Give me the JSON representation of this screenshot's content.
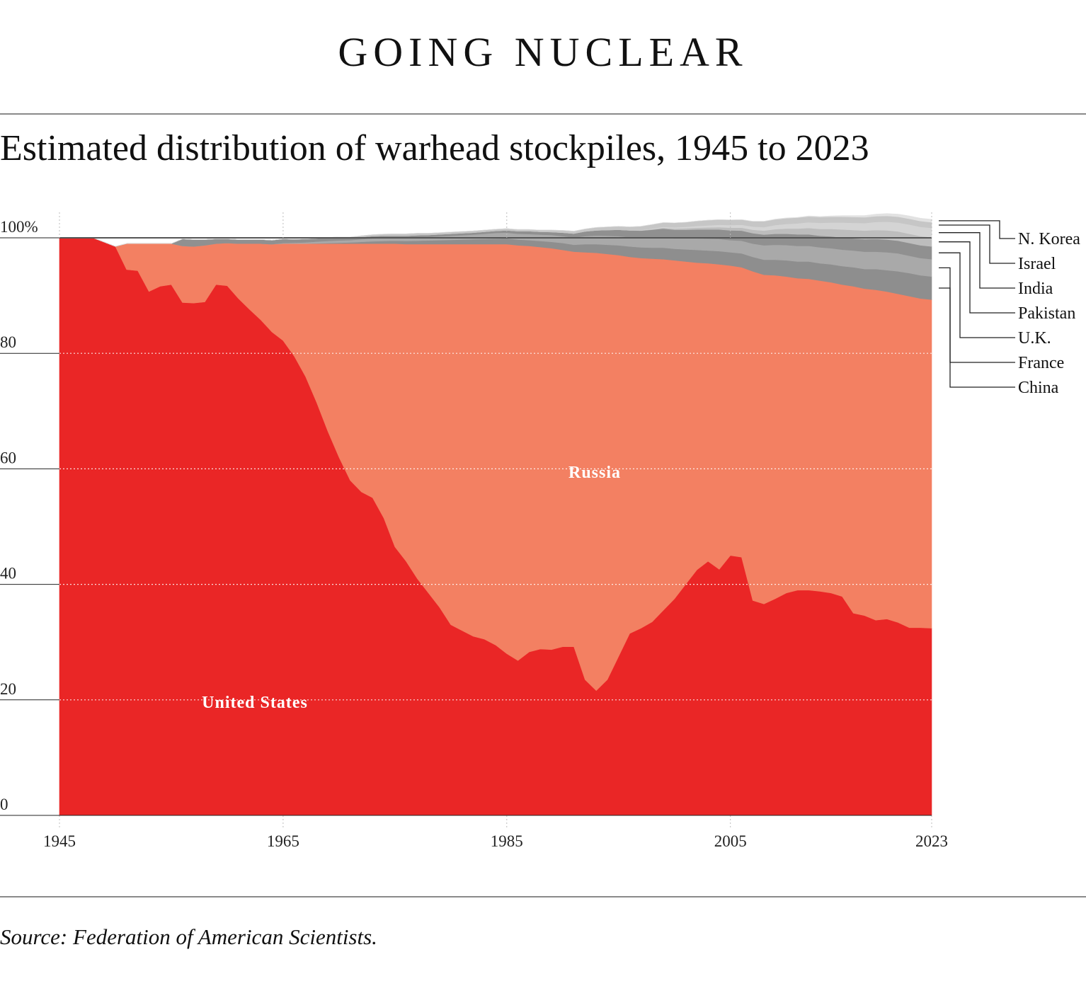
{
  "header": {
    "title": "GOING NUCLEAR",
    "subtitle": "Estimated distribution of warhead stockpiles, 1945 to 2023"
  },
  "footer": {
    "source": "Source: Federation of American Scientists."
  },
  "chart_data": {
    "type": "area",
    "stacked": true,
    "unit": "percent",
    "x_ticks": [
      "1945",
      "1965",
      "1985",
      "2005",
      "2023"
    ],
    "y_ticks": [
      "0",
      "20",
      "40",
      "60",
      "80",
      "100%"
    ],
    "ylim": [
      0,
      100
    ],
    "xlim": [
      1945,
      2023
    ],
    "grid": true,
    "legend_placement": "right",
    "x": [
      1945,
      1948,
      1950,
      1951,
      1952,
      1953,
      1954,
      1955,
      1956,
      1957,
      1958,
      1959,
      1960,
      1961,
      1962,
      1963,
      1964,
      1965,
      1966,
      1967,
      1968,
      1969,
      1970,
      1971,
      1972,
      1973,
      1974,
      1975,
      1976,
      1977,
      1978,
      1979,
      1980,
      1981,
      1982,
      1983,
      1984,
      1985,
      1986,
      1987,
      1988,
      1989,
      1990,
      1991,
      1992,
      1993,
      1994,
      1995,
      1996,
      1997,
      1998,
      1999,
      2000,
      2001,
      2002,
      2003,
      2004,
      2005,
      2006,
      2007,
      2008,
      2009,
      2010,
      2011,
      2012,
      2013,
      2014,
      2015,
      2016,
      2017,
      2018,
      2019,
      2020,
      2021,
      2022,
      2023
    ],
    "series": [
      {
        "name": "United States",
        "color": "#ea2626",
        "values": [
          100,
          100,
          98.5,
          94.5,
          94.3,
          90.7,
          91.6,
          91.9,
          88.8,
          88.7,
          88.9,
          91.9,
          91.7,
          89.5,
          87.6,
          85.8,
          83.7,
          82.2,
          79.5,
          76,
          71.5,
          66.5,
          62,
          58,
          56,
          55,
          51.5,
          46.5,
          44,
          41,
          38.5,
          36,
          33,
          32,
          31,
          30.5,
          29.5,
          28,
          26.8,
          28.3,
          28.8,
          28.7,
          29.2,
          29.2,
          23.5,
          21.6,
          23.5,
          27.5,
          31.5,
          32.4,
          33.5,
          35.5,
          37.5,
          40,
          42.5,
          44,
          42.6,
          45,
          44.7,
          37.2,
          36.6,
          37.5,
          38.5,
          39,
          39,
          38.8,
          38.5,
          37.9,
          35,
          34.6,
          33.8,
          34,
          33.4,
          32.5,
          32.5,
          32.4
        ]
      },
      {
        "name": "Russia",
        "color": "#f38062",
        "values": [
          0,
          0,
          0,
          4.5,
          4.7,
          8.3,
          7.4,
          7.1,
          9.8,
          9.8,
          9.8,
          7.1,
          7.4,
          9.5,
          11.4,
          13.2,
          15.2,
          16.8,
          19.5,
          23,
          27.5,
          32.5,
          37,
          41,
          43,
          44,
          47.5,
          52.5,
          54.9,
          57.9,
          60.4,
          62.9,
          65.9,
          66.9,
          67.9,
          68.4,
          69.4,
          70.9,
          71.9,
          70.3,
          69.6,
          69.5,
          68.7,
          68.4,
          74,
          75.8,
          73.7,
          69.5,
          65.2,
          64.1,
          62.9,
          60.8,
          58.6,
          55.9,
          53.2,
          51.6,
          52.8,
          50.2,
          50.2,
          57,
          57,
          56,
          54.8,
          54,
          53.9,
          53.8,
          53.8,
          54,
          56.6,
          56.6,
          57.2,
          56.7,
          56.9,
          57.4,
          57,
          56.9
        ]
      },
      {
        "name": "China",
        "color": "#8e8e8e",
        "values": [
          0,
          0,
          0,
          0,
          0,
          0,
          0,
          0,
          0,
          0,
          0,
          0,
          0,
          0,
          0,
          0,
          0,
          0,
          0,
          0,
          0.05,
          0.1,
          0.15,
          0.2,
          0.3,
          0.4,
          0.45,
          0.5,
          0.55,
          0.6,
          0.65,
          0.7,
          0.75,
          0.8,
          0.85,
          0.9,
          0.95,
          1,
          1,
          1,
          1.05,
          1.1,
          1.2,
          1.2,
          1.4,
          1.5,
          1.6,
          1.7,
          1.8,
          1.85,
          1.9,
          2,
          2,
          2.1,
          2.2,
          2.2,
          2.3,
          2.3,
          2.4,
          2.5,
          2.6,
          2.7,
          2.8,
          2.9,
          3,
          3,
          3.1,
          3.2,
          3.3,
          3.4,
          3.6,
          3.7,
          3.9,
          4,
          4,
          4
        ]
      },
      {
        "name": "France",
        "color": "#a9a9a9",
        "values": [
          0,
          0,
          0,
          0,
          0,
          0,
          0,
          0,
          0,
          0,
          0,
          0,
          0,
          0,
          0,
          0,
          0,
          0.1,
          0.15,
          0.2,
          0.3,
          0.35,
          0.4,
          0.4,
          0.45,
          0.5,
          0.5,
          0.5,
          0.55,
          0.6,
          0.6,
          0.65,
          0.7,
          0.75,
          0.8,
          0.9,
          1,
          1,
          1,
          1.05,
          1.1,
          1.2,
          1.2,
          1.25,
          1.4,
          1.5,
          1.55,
          1.6,
          1.6,
          1.6,
          1.7,
          1.8,
          1.8,
          1.9,
          2,
          2.05,
          2.1,
          2.1,
          2.2,
          2.3,
          2.5,
          2.6,
          2.65,
          2.7,
          2.7,
          2.75,
          2.8,
          2.85,
          2.9,
          3,
          3,
          3.1,
          3.1,
          3,
          3,
          3
        ]
      },
      {
        "name": "U.K.",
        "color": "#909090",
        "values": [
          0,
          0,
          0,
          0,
          0,
          0,
          0,
          0,
          1.2,
          1.2,
          1,
          0.8,
          0.7,
          0.7,
          0.7,
          0.7,
          0.7,
          0.7,
          0.6,
          0.6,
          0.55,
          0.55,
          0.5,
          0.4,
          0.4,
          0.4,
          0.4,
          0.35,
          0.35,
          0.35,
          0.35,
          0.35,
          0.35,
          0.35,
          0.35,
          0.35,
          0.35,
          0.4,
          0.45,
          0.5,
          0.5,
          0.5,
          0.6,
          0.7,
          0.8,
          0.9,
          1,
          1.1,
          1.2,
          1.3,
          1.4,
          1.5,
          1.5,
          1.5,
          1.55,
          1.6,
          1.65,
          1.7,
          1.75,
          1.8,
          1.85,
          1.9,
          1.95,
          2,
          2,
          2,
          2.05,
          2.1,
          2.1,
          2.15,
          2.2,
          2.2,
          2.2,
          2.2,
          2.2,
          2.2
        ]
      },
      {
        "name": "Pakistan",
        "color": "#bdbdbd",
        "values": [
          0,
          0,
          0,
          0,
          0,
          0,
          0,
          0,
          0,
          0,
          0,
          0,
          0,
          0,
          0,
          0,
          0,
          0,
          0,
          0,
          0,
          0,
          0,
          0,
          0,
          0,
          0,
          0,
          0,
          0,
          0,
          0,
          0,
          0,
          0,
          0,
          0,
          0,
          0,
          0,
          0,
          0,
          0,
          0,
          0,
          0,
          0,
          0,
          0,
          0.05,
          0.1,
          0.15,
          0.2,
          0.25,
          0.3,
          0.35,
          0.4,
          0.45,
          0.5,
          0.6,
          0.7,
          0.8,
          0.9,
          1,
          1.1,
          1.2,
          1.3,
          1.4,
          1.45,
          1.5,
          1.55,
          1.6,
          1.6,
          1.6,
          1.6,
          1.6
        ]
      },
      {
        "name": "India",
        "color": "#d4d4d4",
        "values": [
          0,
          0,
          0,
          0,
          0,
          0,
          0,
          0,
          0,
          0,
          0,
          0,
          0,
          0,
          0,
          0,
          0,
          0,
          0,
          0,
          0,
          0,
          0,
          0,
          0,
          0,
          0,
          0,
          0,
          0,
          0,
          0,
          0,
          0,
          0,
          0,
          0,
          0,
          0,
          0,
          0,
          0,
          0,
          0,
          0,
          0,
          0,
          0,
          0,
          0.05,
          0.1,
          0.15,
          0.2,
          0.25,
          0.3,
          0.35,
          0.4,
          0.45,
          0.5,
          0.55,
          0.6,
          0.7,
          0.8,
          0.9,
          1,
          1.05,
          1.1,
          1.2,
          1.25,
          1.3,
          1.4,
          1.5,
          1.55,
          1.6,
          1.6,
          1.6
        ]
      },
      {
        "name": "Israel",
        "color": "#c6c6c6",
        "values": [
          0,
          0,
          0,
          0,
          0,
          0,
          0,
          0,
          0,
          0,
          0,
          0,
          0,
          0,
          0,
          0,
          0,
          0,
          0,
          0,
          0.05,
          0.05,
          0.1,
          0.15,
          0.2,
          0.25,
          0.3,
          0.35,
          0.35,
          0.35,
          0.3,
          0.3,
          0.3,
          0.3,
          0.3,
          0.3,
          0.3,
          0.3,
          0.3,
          0.3,
          0.3,
          0.35,
          0.4,
          0.4,
          0.45,
          0.5,
          0.55,
          0.6,
          0.6,
          0.65,
          0.7,
          0.75,
          0.8,
          0.8,
          0.85,
          0.9,
          0.9,
          0.9,
          0.9,
          0.9,
          1,
          1,
          1,
          1,
          1,
          1,
          1,
          1,
          1,
          1,
          1,
          1,
          1,
          1,
          1,
          1
        ]
      },
      {
        "name": "N. Korea",
        "color": "#e2e2e2",
        "values": [
          0,
          0,
          0,
          0,
          0,
          0,
          0,
          0,
          0,
          0,
          0,
          0,
          0,
          0,
          0,
          0,
          0,
          0,
          0,
          0,
          0,
          0,
          0,
          0,
          0,
          0,
          0,
          0,
          0,
          0,
          0,
          0,
          0,
          0,
          0,
          0,
          0,
          0,
          0,
          0,
          0,
          0,
          0,
          0,
          0,
          0,
          0,
          0,
          0,
          0,
          0,
          0,
          0,
          0,
          0,
          0,
          0,
          0,
          0.01,
          0.02,
          0.03,
          0.05,
          0.05,
          0.05,
          0.1,
          0.1,
          0.15,
          0.2,
          0.25,
          0.3,
          0.35,
          0.4,
          0.45,
          0.5,
          0.5,
          0.5
        ]
      }
    ],
    "area_labels": [
      {
        "text": "Russia",
        "series": "Russia"
      },
      {
        "text": "United States",
        "series": "United States"
      }
    ],
    "legend": [
      {
        "text": "N. Korea",
        "series": "N. Korea"
      },
      {
        "text": "Israel",
        "series": "Israel"
      },
      {
        "text": "India",
        "series": "India"
      },
      {
        "text": "Pakistan",
        "series": "Pakistan"
      },
      {
        "text": "U.K.",
        "series": "U.K."
      },
      {
        "text": "France",
        "series": "France"
      },
      {
        "text": "China",
        "series": "China"
      }
    ]
  }
}
